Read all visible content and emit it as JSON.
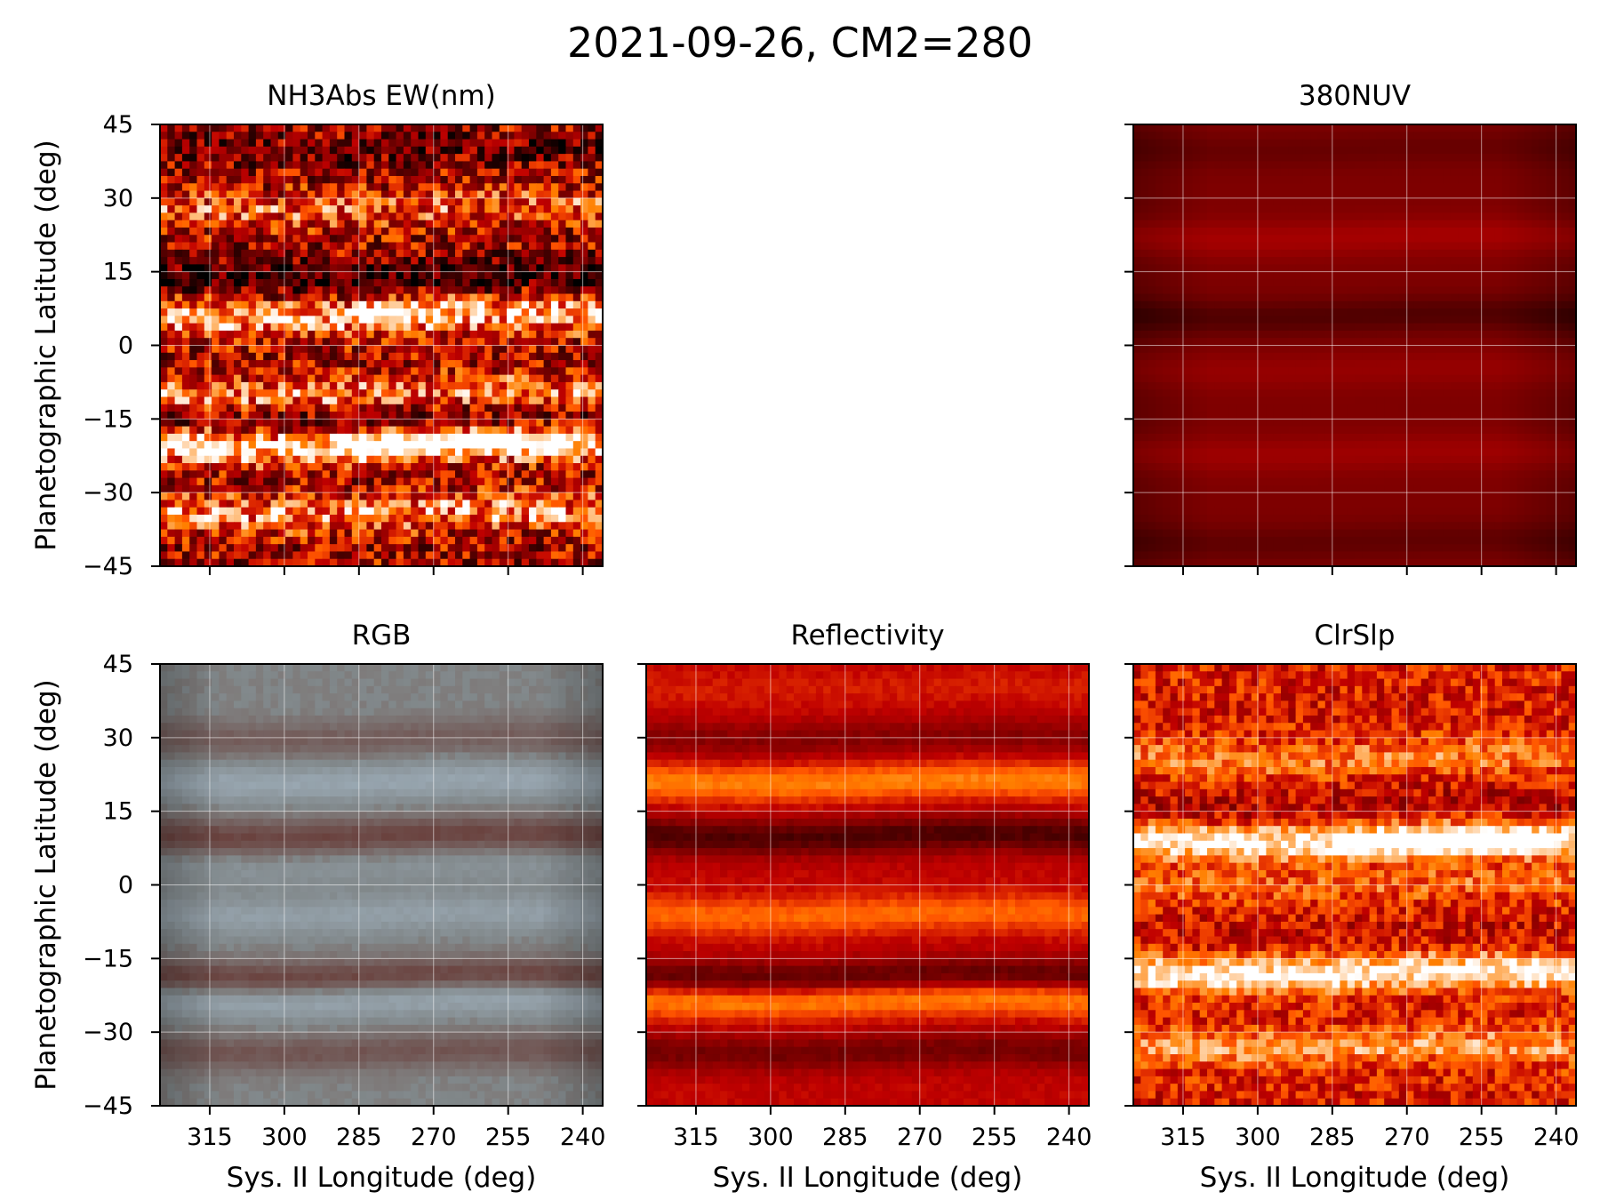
{
  "figure": {
    "title": "2021-09-26, CM2=280",
    "colors": {
      "hot_dark": "#1a0000",
      "hot_mid": "#a00000",
      "hot_bright": "#ff9a1a",
      "rgb_gray": "#8e9090",
      "grid": "#ffffff"
    }
  },
  "chart_data": [
    {
      "id": "nh3",
      "type": "heatmap",
      "title": "NH3Abs EW(nm)",
      "xlabel": "",
      "ylabel": "Planetographic Latitude (deg)",
      "xlim": [
        325,
        236
      ],
      "ylim": [
        -45,
        45
      ],
      "xticks": [
        315,
        300,
        285,
        270,
        255,
        240
      ],
      "yticks": [
        45,
        30,
        15,
        0,
        -15,
        -30,
        -45
      ],
      "ytick_labels": [
        "45",
        "30",
        "15",
        "0",
        "−15",
        "−30",
        "−45"
      ],
      "xtick_labels_shown": false,
      "colormap": "gist_heat",
      "noise": "high",
      "bands": [
        {
          "lat": 28,
          "level": 0.25
        },
        {
          "lat": 6,
          "level": 0.45
        },
        {
          "lat": -10,
          "level": 0.35
        },
        {
          "lat": -20,
          "level": 0.55
        },
        {
          "lat": -34,
          "level": 0.35
        },
        {
          "lat": 14,
          "level": -0.25
        },
        {
          "lat": -15,
          "level": -0.2
        },
        {
          "lat": 40,
          "level": -0.15
        }
      ],
      "bright_streaks": [
        {
          "lat": 6.5,
          "lon_from": 285,
          "lon_to": 275,
          "level": 0.4
        },
        {
          "lat": -20,
          "lon_from": 290,
          "lon_to": 245,
          "level": 0.35
        }
      ]
    },
    {
      "id": "nuv",
      "type": "heatmap",
      "title": "380NUV",
      "xlabel": "",
      "ylabel": "",
      "xlim": [
        325,
        236
      ],
      "ylim": [
        -45,
        45
      ],
      "xticks": [
        315,
        300,
        285,
        270,
        255,
        240
      ],
      "yticks": [
        45,
        30,
        15,
        0,
        -15,
        -30,
        -45
      ],
      "xtick_labels_shown": false,
      "ytick_labels_shown": false,
      "colormap": "gist_heat",
      "noise": "none",
      "bands": [
        {
          "lat": 22,
          "level": 0.1
        },
        {
          "lat": -5,
          "level": 0.06
        },
        {
          "lat": -22,
          "level": 0.08
        },
        {
          "lat": 6,
          "level": -0.12
        },
        {
          "lat": 40,
          "level": -0.06
        },
        {
          "lat": -40,
          "level": -0.08
        }
      ]
    },
    {
      "id": "rgb",
      "type": "heatmap",
      "title": "RGB",
      "xlabel": "Sys. II Longitude (deg)",
      "ylabel": "Planetographic Latitude (deg)",
      "xlim": [
        325,
        236
      ],
      "ylim": [
        -45,
        45
      ],
      "xticks": [
        315,
        300,
        285,
        270,
        255,
        240
      ],
      "yticks": [
        45,
        30,
        15,
        0,
        -15,
        -30,
        -45
      ],
      "xtick_labels": [
        "315",
        "300",
        "285",
        "270",
        "255",
        "240"
      ],
      "ytick_labels": [
        "45",
        "30",
        "15",
        "0",
        "−15",
        "−30",
        "−45"
      ],
      "colormap": "true-color",
      "noise": "low",
      "bands": [
        {
          "lat": 21,
          "level": 0.25
        },
        {
          "lat": -6,
          "level": 0.2
        },
        {
          "lat": -23,
          "level": 0.3
        },
        {
          "lat": 10,
          "level": -0.35
        },
        {
          "lat": -19,
          "level": -0.4
        },
        {
          "lat": 30,
          "level": -0.2
        },
        {
          "lat": -34,
          "level": -0.25
        },
        {
          "lat": 4,
          "level": 0.1
        }
      ]
    },
    {
      "id": "refl",
      "type": "heatmap",
      "title": "Reflectivity",
      "xlabel": "Sys. II Longitude (deg)",
      "ylabel": "",
      "xlim": [
        325,
        236
      ],
      "ylim": [
        -45,
        45
      ],
      "xticks": [
        315,
        300,
        285,
        270,
        255,
        240
      ],
      "yticks": [
        45,
        30,
        15,
        0,
        -15,
        -30,
        -45
      ],
      "xtick_labels": [
        "315",
        "300",
        "285",
        "270",
        "255",
        "240"
      ],
      "ytick_labels_shown": false,
      "colormap": "gist_heat",
      "noise": "low",
      "bands": [
        {
          "lat": 21,
          "level": 0.25
        },
        {
          "lat": -6,
          "level": 0.2
        },
        {
          "lat": -23,
          "level": 0.3
        },
        {
          "lat": 10,
          "level": -0.3
        },
        {
          "lat": -19,
          "level": -0.3
        },
        {
          "lat": 30,
          "level": -0.15
        },
        {
          "lat": -34,
          "level": -0.2
        },
        {
          "lat": 40,
          "level": 0.05
        }
      ]
    },
    {
      "id": "clr",
      "type": "heatmap",
      "title": "ClrSlp",
      "xlabel": "Sys. II Longitude (deg)",
      "ylabel": "",
      "xlim": [
        325,
        236
      ],
      "ylim": [
        -45,
        45
      ],
      "xticks": [
        315,
        300,
        285,
        270,
        255,
        240
      ],
      "yticks": [
        45,
        30,
        15,
        0,
        -15,
        -30,
        -45
      ],
      "xtick_labels": [
        "315",
        "300",
        "285",
        "270",
        "255",
        "240"
      ],
      "ytick_labels_shown": false,
      "colormap": "gist_heat",
      "noise": "medium",
      "bands": [
        {
          "lat": 9,
          "level": 0.45
        },
        {
          "lat": -18,
          "level": 0.45
        },
        {
          "lat": 26,
          "level": 0.2
        },
        {
          "lat": -33,
          "level": 0.25
        },
        {
          "lat": 0,
          "level": 0.15
        },
        {
          "lat": 16,
          "level": -0.1
        },
        {
          "lat": -10,
          "level": -0.05
        }
      ],
      "bright_streaks": [
        {
          "lat": 8.5,
          "lon_from": 285,
          "lon_to": 240,
          "level": 0.3
        }
      ]
    }
  ]
}
